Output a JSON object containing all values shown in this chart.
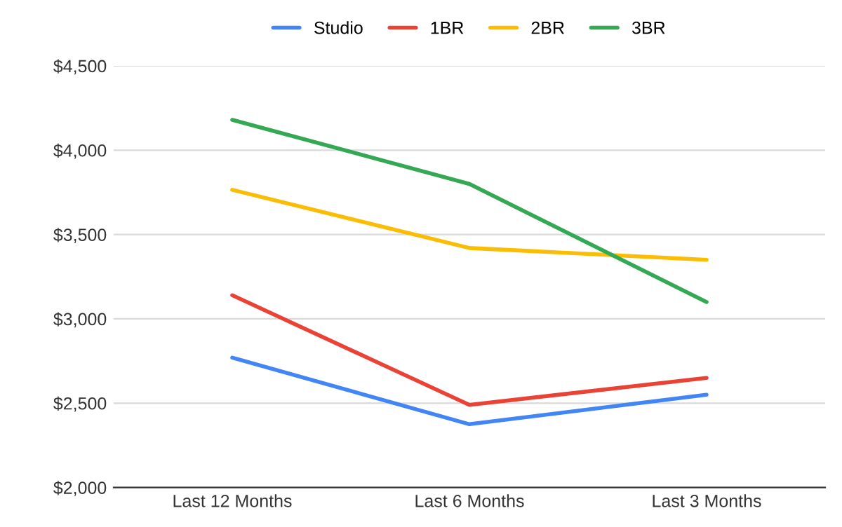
{
  "chart_data": {
    "type": "line",
    "categories": [
      "Last 12 Months",
      "Last 6 Months",
      "Last 3 Months"
    ],
    "series": [
      {
        "name": "Studio",
        "color": "#4285f4",
        "values": [
          2770,
          2375,
          2550
        ]
      },
      {
        "name": "1BR",
        "color": "#ea4335",
        "values": [
          3140,
          2490,
          2650
        ]
      },
      {
        "name": "2BR",
        "color": "#fbbc04",
        "values": [
          3765,
          3420,
          3350
        ]
      },
      {
        "name": "3BR",
        "color": "#34a853",
        "values": [
          4180,
          3800,
          3100
        ]
      }
    ],
    "ylim": [
      2000,
      4500
    ],
    "yticks": [
      {
        "value": 2000,
        "label": "$2,000"
      },
      {
        "value": 2500,
        "label": "$2,500"
      },
      {
        "value": 3000,
        "label": "$3,000"
      },
      {
        "value": 3500,
        "label": "$3,500"
      },
      {
        "value": 4000,
        "label": "$4,000"
      },
      {
        "value": 4500,
        "label": "$4,500"
      }
    ],
    "grid": "y",
    "legend": "top",
    "marker": "none",
    "line_style": "solid"
  }
}
